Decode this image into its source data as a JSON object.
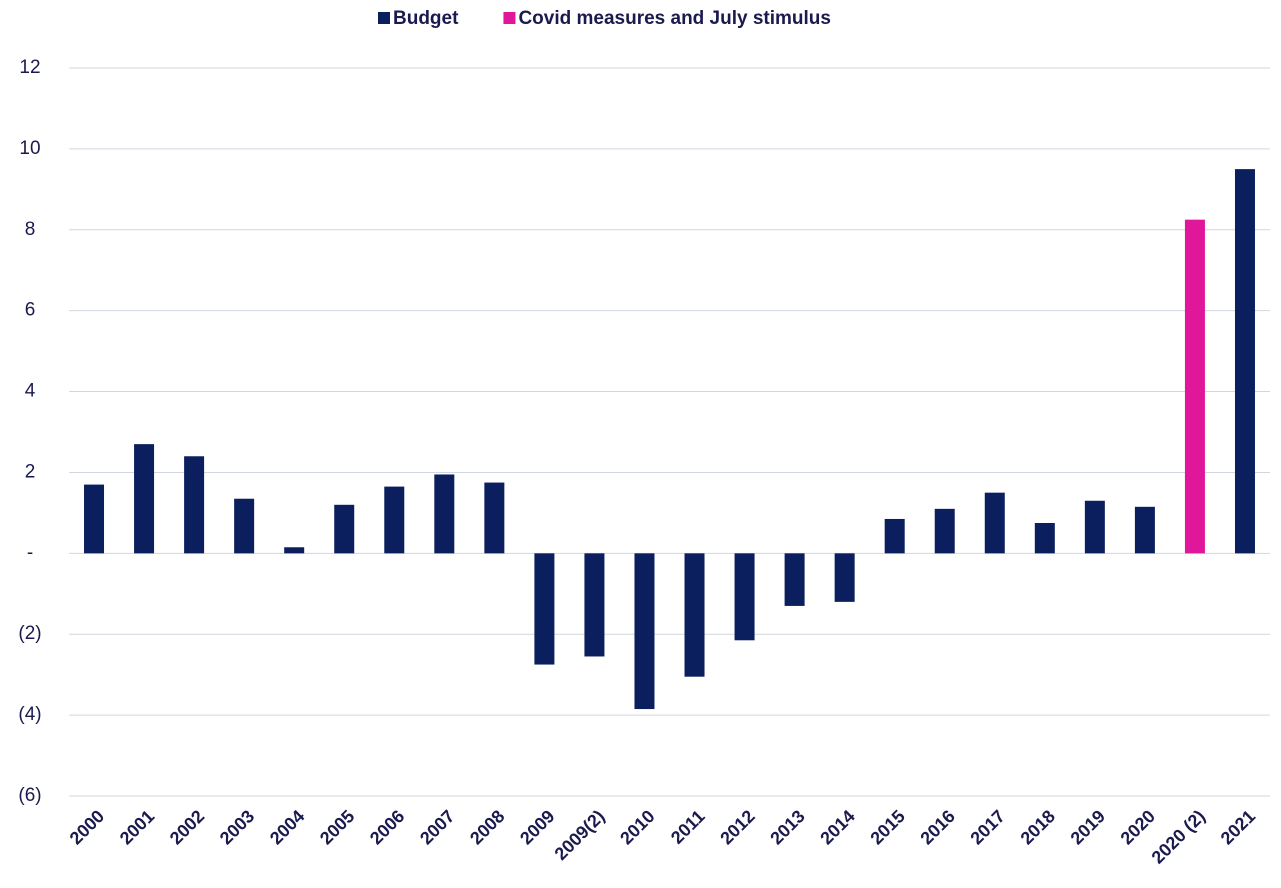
{
  "chart_data": {
    "type": "bar",
    "categories": [
      "2000",
      "2001",
      "2002",
      "2003",
      "2004",
      "2005",
      "2006",
      "2007",
      "2008",
      "2009",
      "2009(2)",
      "2010",
      "2011",
      "2012",
      "2013",
      "2014",
      "2015",
      "2016",
      "2017",
      "2018",
      "2019",
      "2020",
      "2020 (2)",
      "2021"
    ],
    "series": [
      {
        "name": "Budget",
        "color": "#0b1f5e",
        "values": [
          1.7,
          2.7,
          2.4,
          1.35,
          0.15,
          1.2,
          1.65,
          1.95,
          1.75,
          -2.75,
          -2.55,
          -3.85,
          -3.05,
          -2.15,
          -1.3,
          -1.2,
          0.85,
          1.1,
          1.5,
          0.75,
          1.3,
          1.15,
          null,
          9.5
        ]
      },
      {
        "name": "Covid measures and July stimulus",
        "color": "#e0169b",
        "values": [
          null,
          null,
          null,
          null,
          null,
          null,
          null,
          null,
          null,
          null,
          null,
          null,
          null,
          null,
          null,
          null,
          null,
          null,
          null,
          null,
          null,
          null,
          8.25,
          null
        ]
      }
    ],
    "ylim": [
      -6,
      12
    ],
    "yticks": [
      {
        "value": -6,
        "label": "(6)"
      },
      {
        "value": -4,
        "label": "(4)"
      },
      {
        "value": -2,
        "label": "(2)"
      },
      {
        "value": 0,
        "label": "-"
      },
      2,
      4,
      6,
      8,
      10,
      12
    ],
    "grid": true,
    "legend": "top"
  }
}
